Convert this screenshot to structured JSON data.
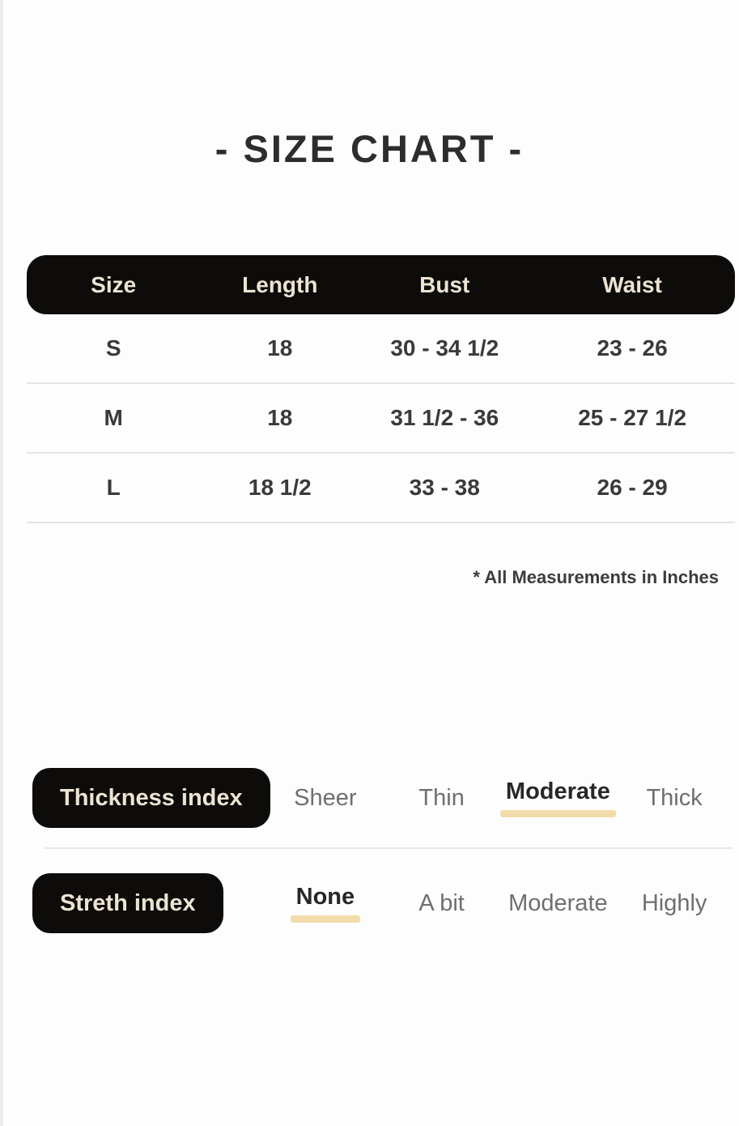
{
  "page": {
    "title": "- SIZE CHART -",
    "footnote": "* All Measurements in Inches"
  },
  "table": {
    "headers": [
      "Size",
      "Length",
      "Bust",
      "Waist"
    ],
    "rows": [
      [
        "S",
        "18",
        "30 - 34 1/2",
        "23 - 26"
      ],
      [
        "M",
        "18",
        "31 1/2 - 36",
        "25 - 27 1/2"
      ],
      [
        "L",
        "18 1/2",
        "33 - 38",
        "26 - 29"
      ]
    ]
  },
  "indexes": [
    {
      "label": "Thickness index",
      "options": [
        "Sheer",
        "Thin",
        "Moderate",
        "Thick"
      ],
      "selected": "Moderate",
      "selected_index": 2
    },
    {
      "label": "Streth index",
      "options": [
        "None",
        "A bit",
        "Moderate",
        "Highly"
      ],
      "selected": "None",
      "selected_index": 0
    }
  ],
  "colors": {
    "black": "#0d0c0a",
    "cream": "#ece4d3",
    "title": "#2d2d2d",
    "text": "#3a3a3a",
    "muted": "#6f6f6f",
    "selected": "#272727",
    "underline": "#f3dcab",
    "divider": "#e3e3e3"
  }
}
